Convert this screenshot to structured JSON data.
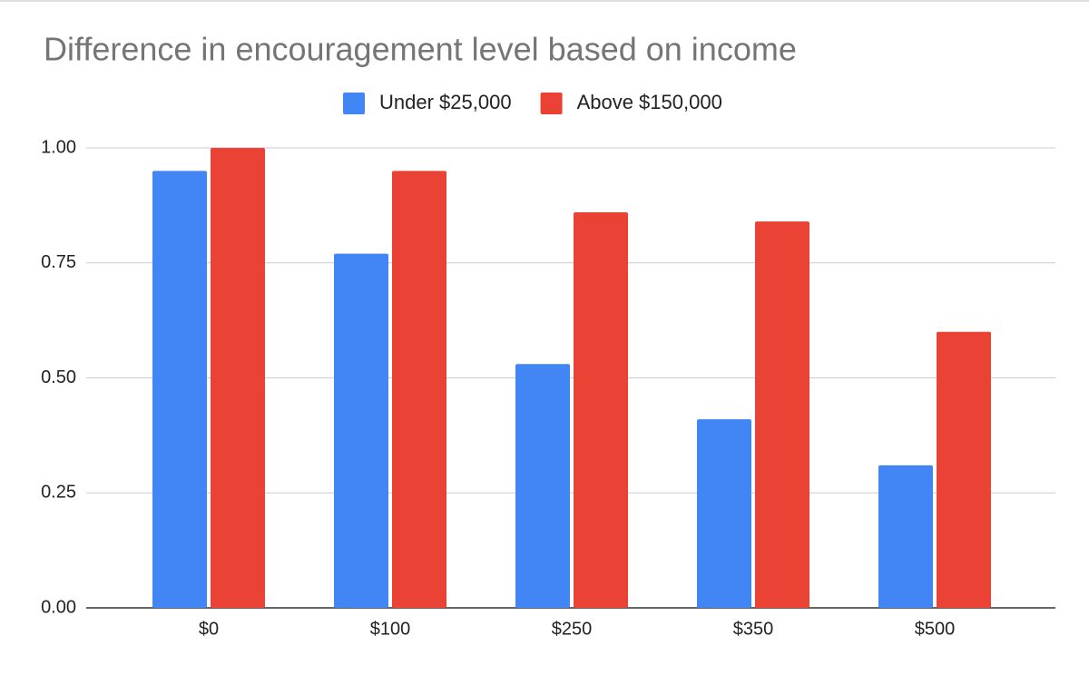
{
  "chart_data": {
    "type": "bar",
    "title": "Difference in encouragement level based on income",
    "categories": [
      "$0",
      "$100",
      "$250",
      "$350",
      "$500"
    ],
    "series": [
      {
        "name": "Under $25,000",
        "color": "#4285f4",
        "values": [
          0.95,
          0.77,
          0.53,
          0.41,
          0.31
        ]
      },
      {
        "name": "Above $150,000",
        "color": "#ea4335",
        "values": [
          1.0,
          0.95,
          0.86,
          0.84,
          0.6
        ]
      }
    ],
    "ylim": [
      0,
      1
    ],
    "yticks": [
      {
        "value": 0,
        "label": "0.00"
      },
      {
        "value": 0.25,
        "label": "0.25"
      },
      {
        "value": 0.5,
        "label": "0.50"
      },
      {
        "value": 0.75,
        "label": "0.75"
      },
      {
        "value": 1,
        "label": "1.00"
      }
    ],
    "grid": true,
    "legend": "top"
  }
}
